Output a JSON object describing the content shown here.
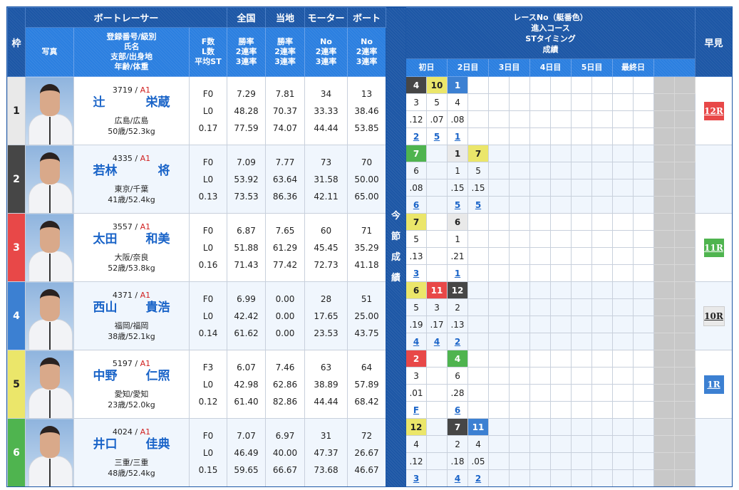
{
  "header": {
    "frame": "枠",
    "racer": "ボートレーサー",
    "national": "全国",
    "local": "当地",
    "motor": "モーター",
    "boat": "ボート",
    "photo": "写真",
    "profile": [
      "登録番号/級別",
      "氏名",
      "支部/出身地",
      "年齢/体重"
    ],
    "fl": [
      "F数",
      "L数",
      "平均ST"
    ],
    "national_sub": [
      "勝率",
      "2連率",
      "3連率"
    ],
    "local_sub": [
      "勝率",
      "2連率",
      "3連率"
    ],
    "motor_sub": [
      "No",
      "2連率",
      "3連率"
    ],
    "boat_sub": [
      "No",
      "2連率",
      "3連率"
    ],
    "session": [
      "今",
      "節",
      "成",
      "績"
    ],
    "race_info": [
      "レースNo（艇番色）",
      "進入コース",
      "STタイミング",
      "成績"
    ],
    "days": [
      "初日",
      "2日目",
      "3日目",
      "4日目",
      "5日目",
      "最終日"
    ],
    "early": "早見"
  },
  "boat_colors": {
    "1": "#e9e9e9",
    "2": "#464646",
    "3": "#e84848",
    "4": "#3c80d2",
    "5": "#ebe66a",
    "6": "#4fb44f"
  },
  "boat_text_colors": {
    "1": "#222222",
    "2": "#ffffff",
    "3": "#ffffff",
    "4": "#ffffff",
    "5": "#222222",
    "6": "#ffffff"
  },
  "racers": [
    {
      "frame": "1",
      "reg": "3719",
      "class": "A1",
      "last": "辻",
      "first": "栄蔵",
      "branch": "広島/広島",
      "age_weight": "50歳/52.3kg",
      "f": "F0",
      "l": "L0",
      "st": "0.17",
      "national": [
        "7.29",
        "48.28",
        "77.59"
      ],
      "local": [
        "7.81",
        "70.37",
        "74.07"
      ],
      "motor": [
        "34",
        "33.33",
        "44.44"
      ],
      "boat": [
        "13",
        "38.46",
        "53.85"
      ],
      "results": [
        {
          "slot": 0,
          "race": "4",
          "boat": "2",
          "course": "3",
          "st": ".12",
          "result": "2"
        },
        {
          "slot": 1,
          "race": "10",
          "boat": "5",
          "course": "5",
          "st": ".07",
          "result": "5"
        },
        {
          "slot": 2,
          "race": "1",
          "boat": "4",
          "course": "4",
          "st": ".08",
          "result": "1"
        }
      ],
      "early": {
        "label": "12R",
        "boat": "3"
      }
    },
    {
      "frame": "2",
      "reg": "4335",
      "class": "A1",
      "last": "若林",
      "first": "将",
      "branch": "東京/千葉",
      "age_weight": "41歳/52.4kg",
      "f": "F0",
      "l": "L0",
      "st": "0.13",
      "national": [
        "7.09",
        "53.92",
        "73.53"
      ],
      "local": [
        "7.77",
        "63.64",
        "86.36"
      ],
      "motor": [
        "73",
        "31.58",
        "42.11"
      ],
      "boat": [
        "70",
        "50.00",
        "65.00"
      ],
      "results": [
        {
          "slot": 0,
          "race": "7",
          "boat": "6",
          "course": "6",
          "st": ".08",
          "result": "6"
        },
        {
          "slot": 2,
          "race": "1",
          "boat": "1",
          "course": "1",
          "st": ".15",
          "result": "5"
        },
        {
          "slot": 3,
          "race": "7",
          "boat": "5",
          "course": "5",
          "st": ".15",
          "result": "5"
        }
      ],
      "early": null
    },
    {
      "frame": "3",
      "reg": "3557",
      "class": "A1",
      "last": "太田",
      "first": "和美",
      "branch": "大阪/奈良",
      "age_weight": "52歳/53.8kg",
      "f": "F0",
      "l": "L0",
      "st": "0.16",
      "national": [
        "6.87",
        "51.88",
        "71.43"
      ],
      "local": [
        "7.65",
        "61.29",
        "77.42"
      ],
      "motor": [
        "60",
        "45.45",
        "72.73"
      ],
      "boat": [
        "71",
        "35.29",
        "41.18"
      ],
      "results": [
        {
          "slot": 0,
          "race": "7",
          "boat": "5",
          "course": "5",
          "st": ".13",
          "result": "3"
        },
        {
          "slot": 2,
          "race": "6",
          "boat": "1",
          "course": "1",
          "st": ".21",
          "result": "1"
        }
      ],
      "early": {
        "label": "11R",
        "boat": "6"
      }
    },
    {
      "frame": "4",
      "reg": "4371",
      "class": "A1",
      "last": "西山",
      "first": "貴浩",
      "branch": "福岡/福岡",
      "age_weight": "38歳/52.1kg",
      "f": "F0",
      "l": "L0",
      "st": "0.14",
      "national": [
        "6.99",
        "42.42",
        "61.62"
      ],
      "local": [
        "0.00",
        "0.00",
        "0.00"
      ],
      "motor": [
        "28",
        "17.65",
        "23.53"
      ],
      "boat": [
        "51",
        "25.00",
        "43.75"
      ],
      "results": [
        {
          "slot": 0,
          "race": "6",
          "boat": "5",
          "course": "5",
          "st": ".19",
          "result": "4"
        },
        {
          "slot": 1,
          "race": "11",
          "boat": "3",
          "course": "3",
          "st": ".17",
          "result": "4"
        },
        {
          "slot": 2,
          "race": "12",
          "boat": "2",
          "course": "2",
          "st": ".13",
          "result": "2"
        }
      ],
      "early": {
        "label": "10R",
        "boat": "1"
      }
    },
    {
      "frame": "5",
      "reg": "5197",
      "class": "A1",
      "last": "中野",
      "first": "仁照",
      "branch": "愛知/愛知",
      "age_weight": "23歳/52.0kg",
      "f": "F3",
      "l": "L0",
      "st": "0.12",
      "national": [
        "6.07",
        "42.98",
        "61.40"
      ],
      "local": [
        "7.46",
        "62.86",
        "82.86"
      ],
      "motor": [
        "63",
        "38.89",
        "44.44"
      ],
      "boat": [
        "64",
        "57.89",
        "68.42"
      ],
      "results": [
        {
          "slot": 0,
          "race": "2",
          "boat": "3",
          "course": "3",
          "st": ".01",
          "result": "F"
        },
        {
          "slot": 2,
          "race": "4",
          "boat": "6",
          "course": "6",
          "st": ".28",
          "result": "6"
        }
      ],
      "early": {
        "label": "1R",
        "boat": "4"
      }
    },
    {
      "frame": "6",
      "reg": "4024",
      "class": "A1",
      "last": "井口",
      "first": "佳典",
      "branch": "三重/三重",
      "age_weight": "48歳/52.4kg",
      "f": "F0",
      "l": "L0",
      "st": "0.15",
      "national": [
        "7.07",
        "46.49",
        "59.65"
      ],
      "local": [
        "6.97",
        "40.00",
        "66.67"
      ],
      "motor": [
        "31",
        "47.37",
        "73.68"
      ],
      "boat": [
        "72",
        "26.67",
        "46.67"
      ],
      "results": [
        {
          "slot": 0,
          "race": "12",
          "boat": "5",
          "course": "4",
          "st": ".12",
          "result": "3"
        },
        {
          "slot": 2,
          "race": "7",
          "boat": "2",
          "course": "2",
          "st": ".18",
          "result": "4"
        },
        {
          "slot": 3,
          "race": "11",
          "boat": "4",
          "course": "4",
          "st": ".05",
          "result": "2"
        }
      ],
      "early": null
    }
  ]
}
